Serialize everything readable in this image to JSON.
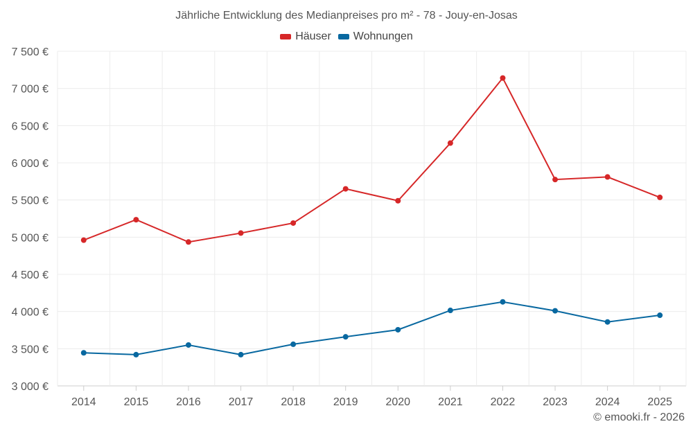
{
  "chart_data": {
    "type": "line",
    "title": "Jährliche Entwicklung des Medianpreises pro m² - 78 - Jouy-en-Josas",
    "categories": [
      "2014",
      "2015",
      "2016",
      "2017",
      "2018",
      "2019",
      "2020",
      "2021",
      "2022",
      "2023",
      "2024",
      "2025"
    ],
    "series": [
      {
        "name": "Häuser",
        "color": "#d62728",
        "values": [
          4960,
          5235,
          4935,
          5055,
          5190,
          5650,
          5490,
          6265,
          7140,
          5775,
          5810,
          5535
        ]
      },
      {
        "name": "Wohnungen",
        "color": "#0868a0",
        "values": [
          3445,
          3420,
          3550,
          3420,
          3560,
          3660,
          3755,
          4015,
          4130,
          4010,
          3860,
          3950
        ]
      }
    ],
    "ylim": [
      3000,
      7500
    ],
    "yticks": [
      3000,
      3500,
      4000,
      4500,
      5000,
      5500,
      6000,
      6500,
      7000,
      7500
    ],
    "ytick_labels": [
      "3 000 €",
      "3 500 €",
      "4 000 €",
      "4 500 €",
      "5 000 €",
      "5 500 €",
      "6 000 €",
      "6 500 €",
      "7 000 €",
      "7 500 €"
    ],
    "xlabel": "",
    "ylabel": "",
    "grid": true,
    "legend": "top-center"
  },
  "credit": "© emooki.fr - 2026"
}
